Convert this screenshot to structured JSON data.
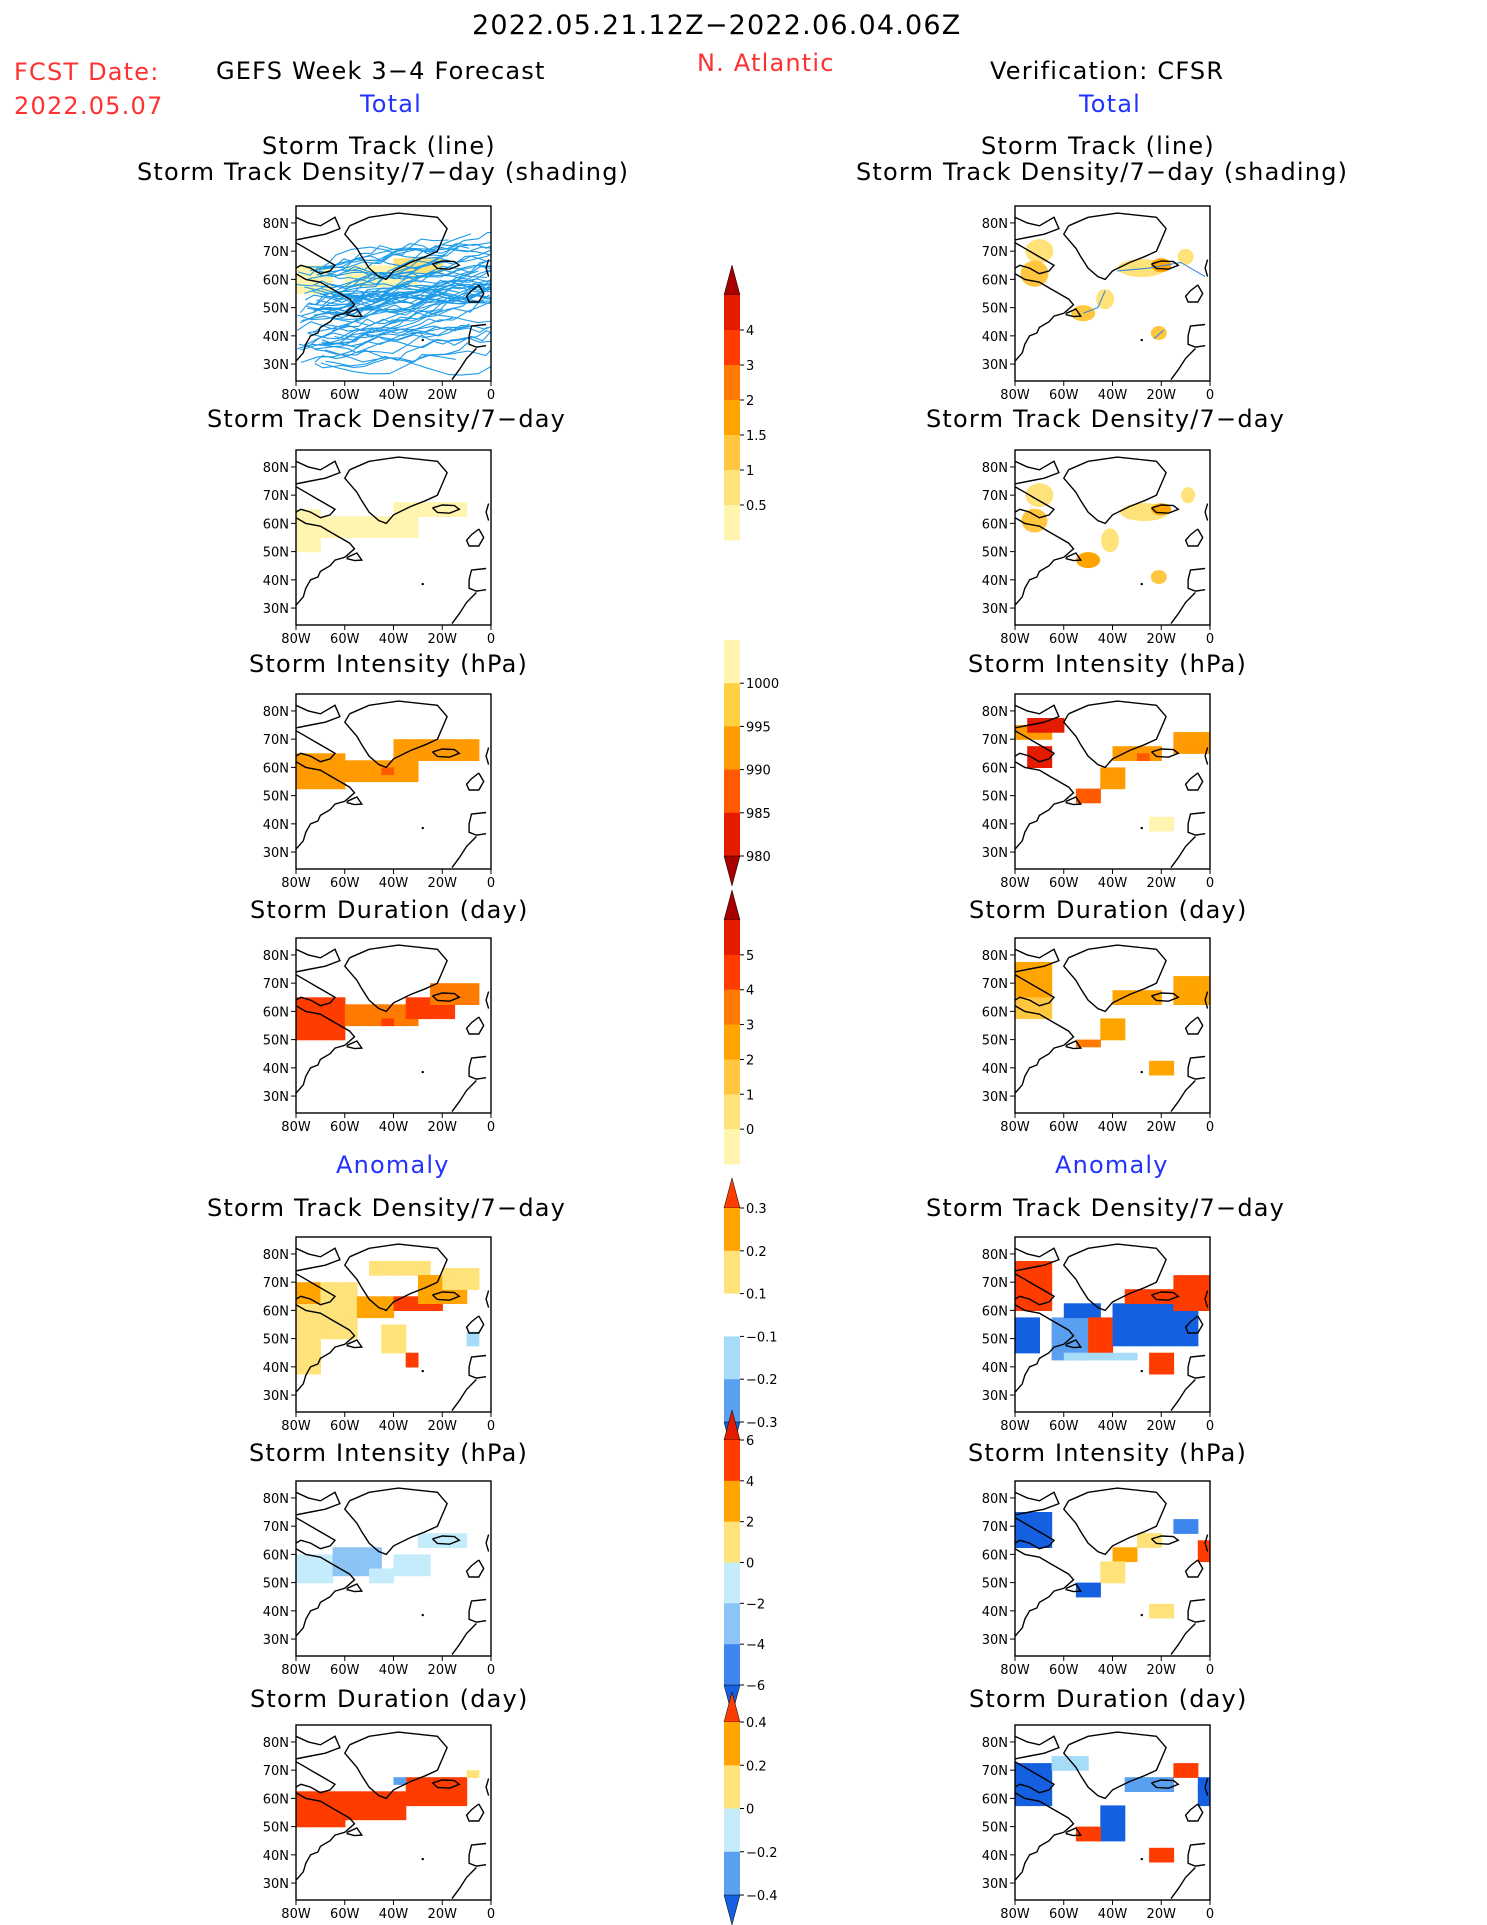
{
  "header": {
    "period": "2022.05.21.12Z−2022.06.04.06Z",
    "fcst_label": "FCST Date:",
    "fcst_date": "2022.05.07",
    "forecast_title": "GEFS Week 3−4 Forecast",
    "region": "N. Atlantic",
    "verification": "Verification: CFSR",
    "total_label": "Total",
    "anomaly_label": "Anomaly"
  },
  "panel_titles": {
    "track_line": "Storm Track (line)",
    "track_shading": "Storm Track Density/7−day (shading)",
    "density": "Storm Track Density/7−day",
    "intensity": "Storm Intensity (hPa)",
    "duration": "Storm Duration (day)"
  },
  "map_axes": {
    "lat_labels": [
      "80N",
      "70N",
      "60N",
      "50N",
      "40N",
      "30N"
    ],
    "lon_labels": [
      "80W",
      "60W",
      "40W",
      "20W",
      "0"
    ]
  },
  "colorbars": [
    {
      "name": "density-total",
      "ticks": [
        "0.5",
        "1",
        "1.5",
        "2",
        "3",
        "4"
      ],
      "colors": [
        "#fff5b0",
        "#ffe27a",
        "#ffc640",
        "#ffa400",
        "#ff7a00",
        "#ff3c00",
        "#e51b00",
        "#a80000"
      ]
    },
    {
      "name": "intensity-total",
      "ticks": [
        "980",
        "985",
        "990",
        "995",
        "1000"
      ],
      "colors": [
        "#a80000",
        "#e51b00",
        "#ff5a00",
        "#ff9a00",
        "#ffd040",
        "#fff5b0"
      ]
    },
    {
      "name": "duration-total",
      "ticks": [
        "0",
        "1",
        "2",
        "3",
        "4",
        "5"
      ],
      "colors": [
        "#fff5b0",
        "#ffe27a",
        "#ffc640",
        "#ffa400",
        "#ff7a00",
        "#ff3c00",
        "#e51b00",
        "#a80000"
      ]
    },
    {
      "name": "density-anom",
      "ticks": [
        "−0.3",
        "−0.2",
        "−0.1",
        "0.1",
        "0.2",
        "0.3"
      ],
      "colors": [
        "#1560e0",
        "#5aa0f0",
        "#a6dcf8",
        "#ffffff",
        "#ffe27a",
        "#ffa400",
        "#ff3c00"
      ]
    },
    {
      "name": "intensity-anom",
      "ticks": [
        "−6",
        "−4",
        "−2",
        "0",
        "2",
        "4",
        "6"
      ],
      "colors": [
        "#1560e0",
        "#3e86ee",
        "#8cc4f6",
        "#c4ecfb",
        "#ffe27a",
        "#ffa400",
        "#ff3c00",
        "#e51b00"
      ]
    },
    {
      "name": "duration-anom",
      "ticks": [
        "−0.4",
        "−0.2",
        "0",
        "0.2",
        "0.4"
      ],
      "colors": [
        "#1560e0",
        "#5aa0f0",
        "#c4ecfb",
        "#ffe27a",
        "#ffa400",
        "#ff3c00"
      ]
    }
  ],
  "palette": {
    "track_fcst": "#1e9be8",
    "track_obs": "#3c88d8",
    "total": [
      "#fff5b0",
      "#ffe27a",
      "#ffc640",
      "#ffa400",
      "#ff7a00",
      "#ff3c00",
      "#e51b00",
      "#a80000"
    ],
    "anom": [
      "#1560e0",
      "#5aa0f0",
      "#a6dcf8",
      "#ffe27a",
      "#ffa400",
      "#ff3c00"
    ]
  }
}
